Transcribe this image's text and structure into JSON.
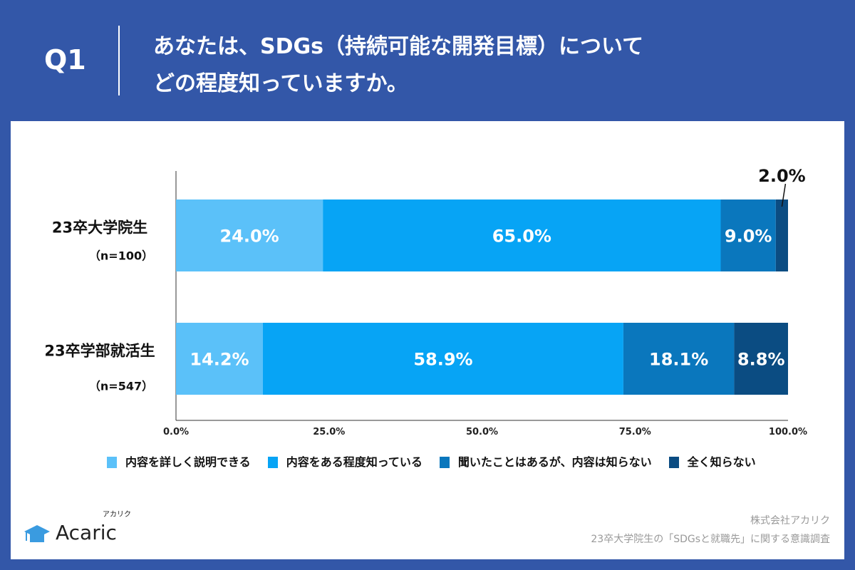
{
  "header": {
    "q": "Q1",
    "title_line1": "あなたは、SDGs（持続可能な開発目標）について",
    "title_line2": "どの程度知っていますか。"
  },
  "colors": {
    "background": "#3357a8",
    "s1": "#5bc1f9",
    "s2": "#07a4f5",
    "s3": "#0a77bd",
    "s4": "#0b4c82"
  },
  "chart_data": {
    "type": "bar",
    "orientation": "horizontal",
    "stacked": true,
    "categories": [
      {
        "label": "23卒大学院生",
        "n": "（n=100）"
      },
      {
        "label": "23卒学部就活生",
        "n": "（n=547）"
      }
    ],
    "series": [
      {
        "name": "内容を詳しく説明できる",
        "values": [
          24.0,
          14.2
        ],
        "labels": [
          "24.0%",
          "14.2%"
        ]
      },
      {
        "name": "内容をある程度知っている",
        "values": [
          65.0,
          58.9
        ],
        "labels": [
          "65.0%",
          "58.9%"
        ]
      },
      {
        "name": "聞いたことはあるが、内容は知らない",
        "values": [
          9.0,
          18.1
        ],
        "labels": [
          "9.0%",
          "18.1%"
        ]
      },
      {
        "name": "全く知らない",
        "values": [
          2.0,
          8.8
        ],
        "labels": [
          "2.0%",
          "8.8%"
        ]
      }
    ],
    "xlim": [
      0,
      100
    ],
    "xticks": [
      "0.0%",
      "25.0%",
      "50.0%",
      "75.0%",
      "100.0%"
    ],
    "legend": "bottom",
    "grid": false
  },
  "footer": {
    "logo": "Acaric",
    "logo_kana": "アカリク",
    "company": "株式会社アカリク",
    "survey": "23卒大学院生の「SDGsと就職先」に関する意識調査"
  }
}
